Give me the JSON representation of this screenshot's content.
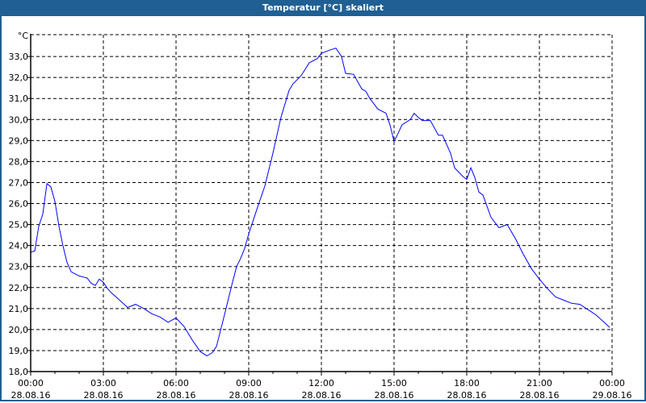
{
  "window": {
    "title": "Temperatur [°C] skaliert"
  },
  "colors": {
    "titlebar": "#1f5f94",
    "line": "#0000ff",
    "grid": "#000000"
  },
  "chart_data": {
    "type": "line",
    "title": "Temperatur [°C] skaliert",
    "ylabel": "°C",
    "xlabel": "",
    "ylim": [
      18,
      34.04
    ],
    "xlim": [
      0,
      24
    ],
    "grid": true,
    "yticks": [
      {
        "v": 18,
        "label": "18,0"
      },
      {
        "v": 19,
        "label": "19,0"
      },
      {
        "v": 20,
        "label": "20,0"
      },
      {
        "v": 21,
        "label": "21,0"
      },
      {
        "v": 22,
        "label": "22,0"
      },
      {
        "v": 23,
        "label": "23,0"
      },
      {
        "v": 24,
        "label": "24,0"
      },
      {
        "v": 25,
        "label": "25,0"
      },
      {
        "v": 26,
        "label": "26,0"
      },
      {
        "v": 27,
        "label": "27,0"
      },
      {
        "v": 28,
        "label": "28,0"
      },
      {
        "v": 29,
        "label": "29,0"
      },
      {
        "v": 30,
        "label": "30,0"
      },
      {
        "v": 31,
        "label": "31,0"
      },
      {
        "v": 32,
        "label": "32,0"
      },
      {
        "v": 33,
        "label": "33,0"
      }
    ],
    "xticks": [
      {
        "h": 0,
        "time": "00:00",
        "date": "28.08.16"
      },
      {
        "h": 3,
        "time": "03:00",
        "date": "28.08.16"
      },
      {
        "h": 6,
        "time": "06:00",
        "date": "28.08.16"
      },
      {
        "h": 9,
        "time": "09:00",
        "date": "28.08.16"
      },
      {
        "h": 12,
        "time": "12:00",
        "date": "28.08.16"
      },
      {
        "h": 15,
        "time": "15:00",
        "date": "28.08.16"
      },
      {
        "h": 18,
        "time": "18:00",
        "date": "28.08.16"
      },
      {
        "h": 21,
        "time": "21:00",
        "date": "28.08.16"
      },
      {
        "h": 24,
        "time": "00:00",
        "date": "29.08.16"
      }
    ],
    "series": [
      {
        "name": "Temperatur",
        "points": [
          [
            0,
            23.68
          ],
          [
            0.17,
            23.75
          ],
          [
            0.33,
            24.9
          ],
          [
            0.5,
            25.5
          ],
          [
            0.67,
            26.95
          ],
          [
            0.83,
            26.8
          ],
          [
            1,
            26.1
          ],
          [
            1.17,
            24.9
          ],
          [
            1.33,
            24.0
          ],
          [
            1.5,
            23.2
          ],
          [
            1.67,
            22.75
          ],
          [
            2,
            22.55
          ],
          [
            2.17,
            22.5
          ],
          [
            2.33,
            22.45
          ],
          [
            2.5,
            22.2
          ],
          [
            2.67,
            22.1
          ],
          [
            2.83,
            22.4
          ],
          [
            3,
            22.25
          ],
          [
            3.17,
            21.95
          ],
          [
            3.33,
            21.75
          ],
          [
            3.67,
            21.4
          ],
          [
            4,
            21.05
          ],
          [
            4.33,
            21.2
          ],
          [
            4.67,
            21.0
          ],
          [
            5,
            20.75
          ],
          [
            5.33,
            20.6
          ],
          [
            5.67,
            20.35
          ],
          [
            6,
            20.55
          ],
          [
            6.33,
            20.15
          ],
          [
            6.67,
            19.5
          ],
          [
            7,
            18.95
          ],
          [
            7.27,
            18.75
          ],
          [
            7.5,
            18.9
          ],
          [
            7.67,
            19.2
          ],
          [
            8,
            20.7
          ],
          [
            8.33,
            22.25
          ],
          [
            8.5,
            23.0
          ],
          [
            8.67,
            23.4
          ],
          [
            8.83,
            23.85
          ],
          [
            9,
            24.55
          ],
          [
            9.33,
            25.7
          ],
          [
            9.67,
            26.85
          ],
          [
            10,
            28.4
          ],
          [
            10.33,
            30.1
          ],
          [
            10.67,
            31.4
          ],
          [
            10.83,
            31.7
          ],
          [
            11.17,
            32.1
          ],
          [
            11.5,
            32.7
          ],
          [
            11.83,
            32.9
          ],
          [
            12,
            33.15
          ],
          [
            12.33,
            33.3
          ],
          [
            12.6,
            33.4
          ],
          [
            12.83,
            33.0
          ],
          [
            13,
            32.2
          ],
          [
            13.33,
            32.15
          ],
          [
            13.67,
            31.45
          ],
          [
            13.83,
            31.35
          ],
          [
            14,
            31.0
          ],
          [
            14.33,
            30.5
          ],
          [
            14.67,
            30.3
          ],
          [
            14.83,
            29.75
          ],
          [
            15,
            28.95
          ],
          [
            15.17,
            29.35
          ],
          [
            15.33,
            29.75
          ],
          [
            15.67,
            30.0
          ],
          [
            15.83,
            30.3
          ],
          [
            16,
            30.1
          ],
          [
            16.17,
            29.95
          ],
          [
            16.5,
            29.95
          ],
          [
            16.83,
            29.25
          ],
          [
            17,
            29.25
          ],
          [
            17.33,
            28.4
          ],
          [
            17.5,
            27.7
          ],
          [
            17.83,
            27.3
          ],
          [
            18,
            27.15
          ],
          [
            18.17,
            27.7
          ],
          [
            18.33,
            27.25
          ],
          [
            18.5,
            26.55
          ],
          [
            18.67,
            26.4
          ],
          [
            19,
            25.35
          ],
          [
            19.33,
            24.85
          ],
          [
            19.67,
            25.0
          ],
          [
            20,
            24.35
          ],
          [
            20.33,
            23.6
          ],
          [
            20.67,
            22.9
          ],
          [
            21,
            22.4
          ],
          [
            21.33,
            21.95
          ],
          [
            21.67,
            21.55
          ],
          [
            22,
            21.4
          ],
          [
            22.33,
            21.25
          ],
          [
            22.67,
            21.2
          ],
          [
            23,
            20.95
          ],
          [
            23.33,
            20.7
          ],
          [
            23.67,
            20.35
          ],
          [
            23.9,
            20.1
          ]
        ]
      }
    ]
  }
}
